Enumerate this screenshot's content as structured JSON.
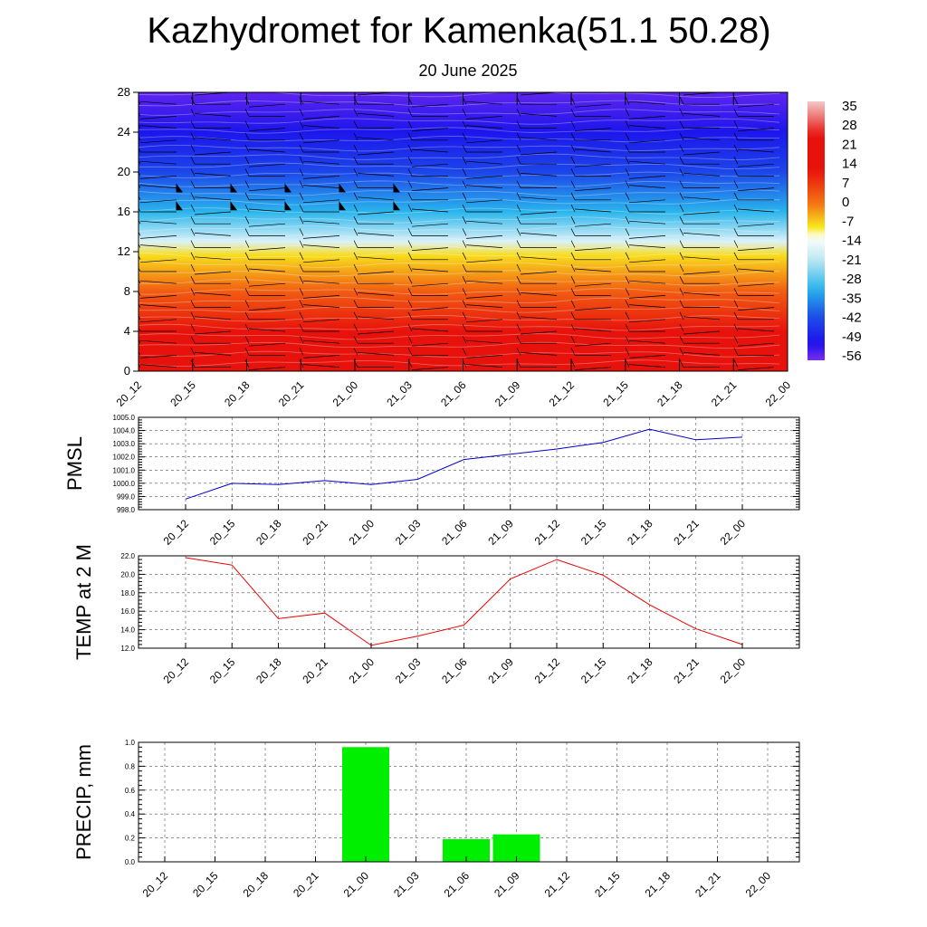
{
  "title": "Kazhydromet for Kamenka(51.1 50.28)",
  "subtitle": "20 June 2025",
  "chart_data": [
    {
      "type": "heatmap",
      "description_key": "cross-section",
      "x_ticks": [
        "20_12",
        "20_15",
        "20_18",
        "20_21",
        "21_00",
        "21_03",
        "21_06",
        "21_09",
        "21_12",
        "21_15",
        "21_18",
        "21_21",
        "22_00"
      ],
      "y_ticks": [
        0,
        4,
        8,
        12,
        16,
        20,
        24,
        28
      ],
      "ylim": [
        0,
        28
      ],
      "colorbar_labels": [
        35,
        28,
        21,
        14,
        7,
        0,
        -7,
        -14,
        -21,
        -28,
        -35,
        -42,
        -49,
        -56
      ],
      "colorbar_range": [
        -63,
        42
      ],
      "temperature_profile": [
        {
          "height": 0,
          "value": 20
        },
        {
          "height": 4,
          "value": 14
        },
        {
          "height": 8,
          "value": 4
        },
        {
          "height": 11.6,
          "value": -8
        },
        {
          "height": 13,
          "value": -18
        },
        {
          "height": 16,
          "value": -34
        },
        {
          "height": 20,
          "value": -47
        },
        {
          "height": 24,
          "value": -55
        },
        {
          "height": 28,
          "value": -61
        }
      ],
      "colors": {
        "warm_red": "#e8120c",
        "orange": "#f47a14",
        "yellow": "#f8e81c",
        "light_cyan": "#bfe8f2",
        "cyan": "#29b5ec",
        "blue": "#1c58e8",
        "deep_blue": "#1c10ec",
        "violet": "#7a2cf0"
      }
    },
    {
      "type": "line",
      "ylabel": "PMSL",
      "x": [
        "20_12",
        "20_15",
        "20_18",
        "20_21",
        "21_00",
        "21_03",
        "21_06",
        "21_09",
        "21_12",
        "21_15",
        "21_18",
        "21_21",
        "22_00"
      ],
      "series": [
        {
          "values": [
            998.8,
            1000.0,
            999.9,
            1000.2,
            999.9,
            1000.3,
            1001.8,
            1002.2,
            1002.6,
            1003.1,
            1004.1,
            1003.3,
            1003.5
          ],
          "color": "#0000cc"
        }
      ],
      "ylim": [
        998.0,
        1005.0
      ],
      "y_ticks": [
        "998.0",
        "999.0",
        "1000.0",
        "1001.0",
        "1002.0",
        "1003.0",
        "1004.0",
        "1005.0"
      ],
      "grid": true
    },
    {
      "type": "line",
      "ylabel": "TEMP at 2 M",
      "x": [
        "20_12",
        "20_15",
        "20_18",
        "20_21",
        "21_00",
        "21_03",
        "21_06",
        "21_09",
        "21_12",
        "21_15",
        "21_18",
        "21_21",
        "22_00"
      ],
      "series": [
        {
          "values": [
            21.8,
            21.0,
            15.2,
            15.8,
            12.3,
            13.3,
            14.5,
            19.5,
            21.6,
            19.9,
            16.7,
            14.1,
            12.4
          ],
          "color": "#ee0000"
        }
      ],
      "ylim": [
        12.0,
        22.0
      ],
      "y_ticks": [
        "12.0",
        "14.0",
        "16.0",
        "18.0",
        "20.0",
        "22.0"
      ],
      "grid": true
    },
    {
      "type": "bar",
      "ylabel": "PRECIP, mm",
      "categories": [
        "20_12",
        "20_15",
        "20_18",
        "20_21",
        "21_00",
        "21_03",
        "21_06",
        "21_09",
        "21_12",
        "21_15",
        "21_18",
        "21_21",
        "22_00"
      ],
      "values": [
        0,
        0,
        0,
        0,
        0.96,
        0,
        0.19,
        0.23,
        0,
        0,
        0,
        0,
        0
      ],
      "ylim": [
        0,
        1.0
      ],
      "y_ticks": [
        "0.0",
        "0.2",
        "0.4",
        "0.6",
        "0.8",
        "1.0"
      ],
      "bar_color": "#00ee00",
      "grid": true
    }
  ]
}
